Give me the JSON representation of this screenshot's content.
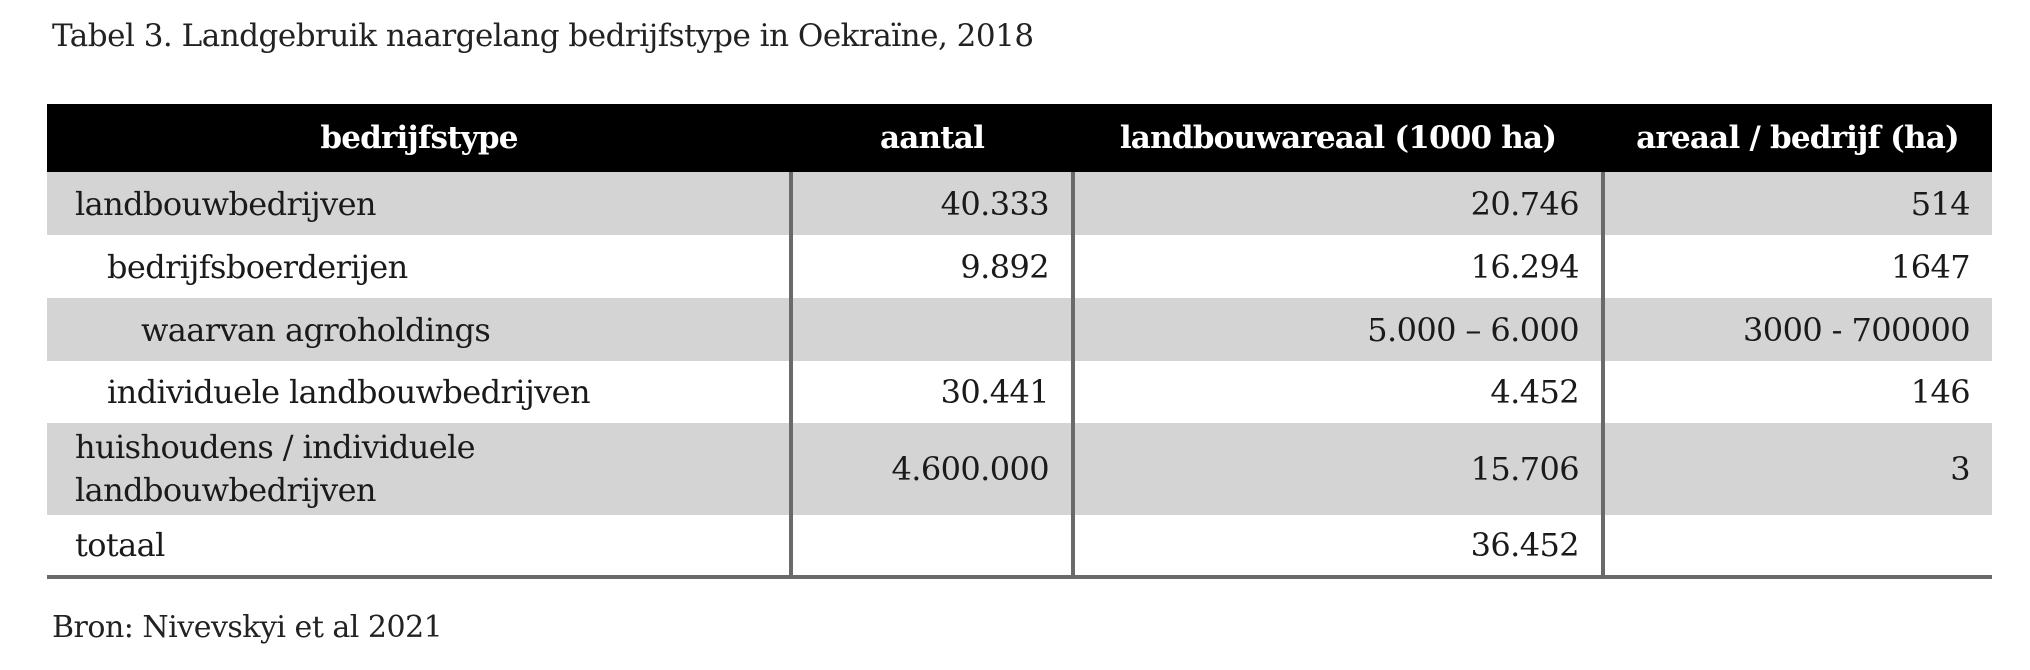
{
  "caption": "Tabel 3. Landgebruik naargelang bedrijfstype in Oekraïne, 2018",
  "source": "Bron: Nivevskyi et al 2021",
  "table": {
    "headers": [
      "bedrijfstype",
      "aantal",
      "landbouwareaal (1000 ha)",
      "areaal / bedrijf (ha)"
    ],
    "rows": [
      {
        "type": "landbouwbedrijven",
        "aantal": "40.333",
        "areaal": "20.746",
        "per_bedrijf": "514"
      },
      {
        "type": "bedrijfsboerderijen",
        "aantal": "9.892",
        "areaal": "16.294",
        "per_bedrijf": "1647"
      },
      {
        "type": "waarvan agroholdings",
        "aantal": "",
        "areaal": "5.000 – 6.000",
        "per_bedrijf": "3000 - 700000"
      },
      {
        "type": "individuele landbouwbedrijven",
        "aantal": "30.441",
        "areaal": "4.452",
        "per_bedrijf": "146"
      },
      {
        "type": "huishoudens / individuele landbouwbedrijven",
        "aantal": "4.600.000",
        "areaal": "15.706",
        "per_bedrijf": "3"
      },
      {
        "type": "totaal",
        "aantal": "",
        "areaal": "36.452",
        "per_bedrijf": ""
      }
    ]
  }
}
